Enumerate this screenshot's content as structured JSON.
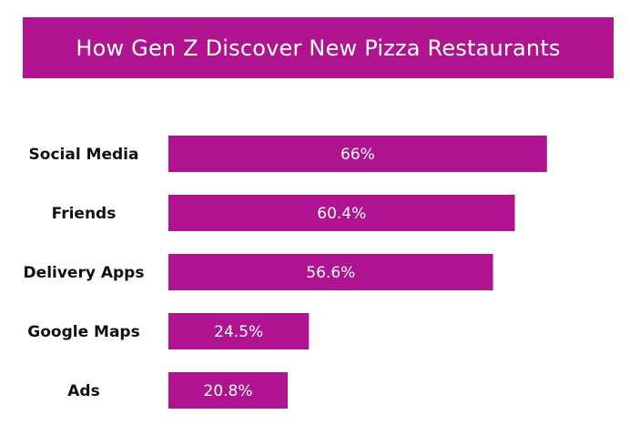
{
  "chart_data": {
    "type": "bar",
    "orientation": "horizontal",
    "title": "How Gen Z Discover New Pizza Restaurants",
    "categories": [
      "Social Media",
      "Friends",
      "Delivery Apps",
      "Google Maps",
      "Ads"
    ],
    "values": [
      66,
      60.4,
      56.6,
      24.5,
      20.8
    ],
    "value_labels": [
      "66%",
      "60.4%",
      "56.6%",
      "24.5%",
      "20.8%"
    ],
    "xlabel": "",
    "ylabel": "",
    "xlim": [
      0,
      100
    ],
    "grid": false,
    "legend": "none",
    "colors": {
      "bar": "#b0138f",
      "title_bg": "#b0138f",
      "title_text": "#ffffff",
      "value_text": "#ffffff",
      "category_text": "#111111"
    }
  }
}
